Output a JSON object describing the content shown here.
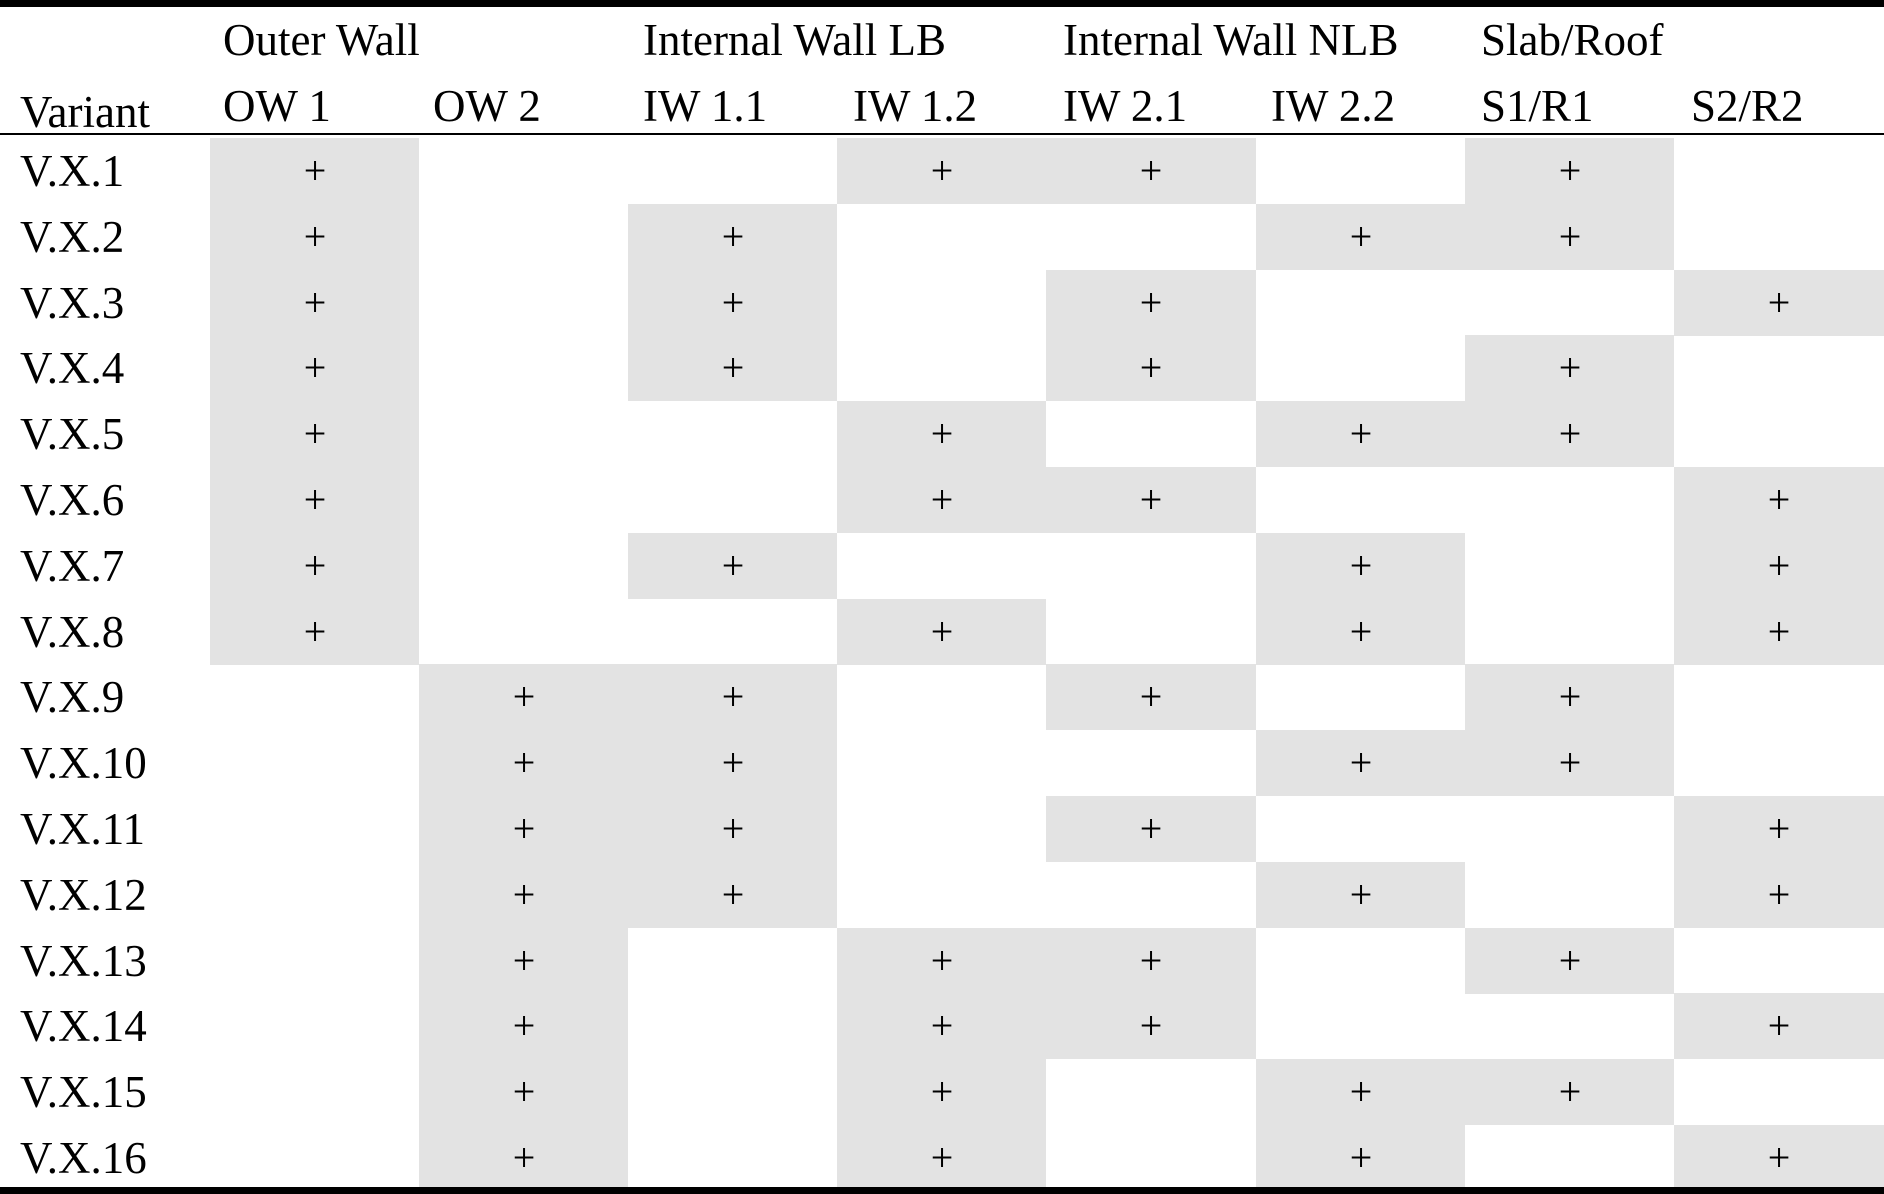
{
  "table": {
    "variant_header": "Variant",
    "groups": [
      "Outer Wall",
      "Internal Wall LB",
      "Internal Wall NLB",
      "Slab/Roof"
    ],
    "columns": [
      "OW 1",
      "OW 2",
      "IW 1.1",
      "IW 1.2",
      "IW 2.1",
      "IW 2.2",
      "S1/R1",
      "S2/R2"
    ],
    "mark_symbol": "+",
    "shade_color": "#e3e3e3",
    "rows": [
      {
        "label": "V.X.1",
        "marks": [
          1,
          0,
          0,
          1,
          1,
          0,
          1,
          0
        ]
      },
      {
        "label": "V.X.2",
        "marks": [
          1,
          0,
          1,
          0,
          0,
          1,
          1,
          0
        ]
      },
      {
        "label": "V.X.3",
        "marks": [
          1,
          0,
          1,
          0,
          1,
          0,
          0,
          1
        ]
      },
      {
        "label": "V.X.4",
        "marks": [
          1,
          0,
          1,
          0,
          1,
          0,
          1,
          0
        ]
      },
      {
        "label": "V.X.5",
        "marks": [
          1,
          0,
          0,
          1,
          0,
          1,
          1,
          0
        ]
      },
      {
        "label": "V.X.6",
        "marks": [
          1,
          0,
          0,
          1,
          1,
          0,
          0,
          1
        ]
      },
      {
        "label": "V.X.7",
        "marks": [
          1,
          0,
          1,
          0,
          0,
          1,
          0,
          1
        ]
      },
      {
        "label": "V.X.8",
        "marks": [
          1,
          0,
          0,
          1,
          0,
          1,
          0,
          1
        ]
      },
      {
        "label": "V.X.9",
        "marks": [
          0,
          1,
          1,
          0,
          1,
          0,
          1,
          0
        ]
      },
      {
        "label": "V.X.10",
        "marks": [
          0,
          1,
          1,
          0,
          0,
          1,
          1,
          0
        ]
      },
      {
        "label": "V.X.11",
        "marks": [
          0,
          1,
          1,
          0,
          1,
          0,
          0,
          1
        ]
      },
      {
        "label": "V.X.12",
        "marks": [
          0,
          1,
          1,
          0,
          0,
          1,
          0,
          1
        ]
      },
      {
        "label": "V.X.13",
        "marks": [
          0,
          1,
          0,
          1,
          1,
          0,
          1,
          0
        ]
      },
      {
        "label": "V.X.14",
        "marks": [
          0,
          1,
          0,
          1,
          1,
          0,
          0,
          1
        ]
      },
      {
        "label": "V.X.15",
        "marks": [
          0,
          1,
          0,
          1,
          0,
          1,
          1,
          0
        ]
      },
      {
        "label": "V.X.16",
        "marks": [
          0,
          1,
          0,
          1,
          0,
          1,
          0,
          1
        ]
      }
    ]
  }
}
